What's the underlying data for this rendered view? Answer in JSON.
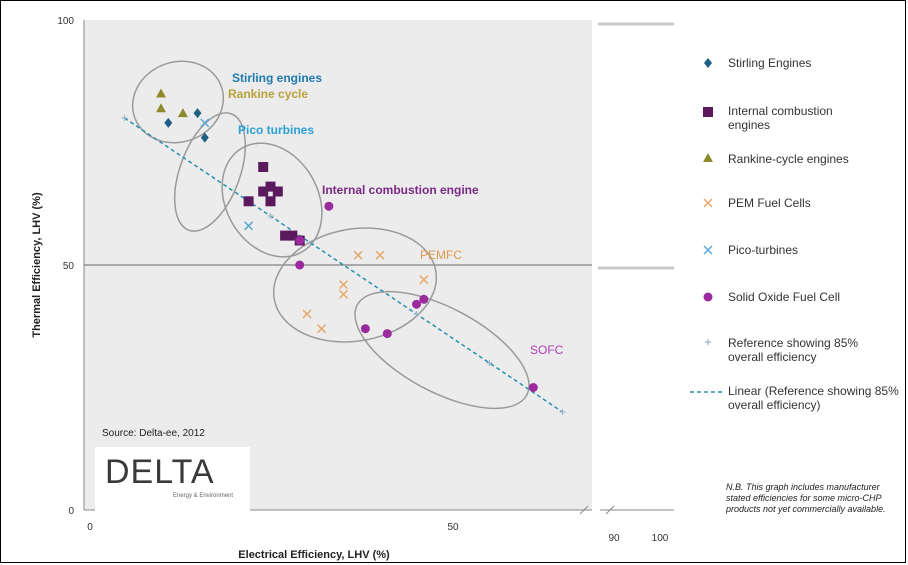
{
  "chart_data": {
    "type": "scatter",
    "xlabel": "Electrical Efficiency, LHV (%)",
    "ylabel": "Thermal Efficiency, LHV (%)",
    "xlim": [
      0,
      100
    ],
    "ylim": [
      0,
      100
    ],
    "x_ticks_main": [
      "0",
      "50"
    ],
    "x_ticks_right": [
      "90",
      "100"
    ],
    "y_ticks": [
      "0",
      "50",
      "100"
    ],
    "axis_break": true,
    "grid_y": [
      50
    ],
    "legend_position": "right",
    "series": [
      {
        "name": "Stirling Engines",
        "marker": "diamond",
        "color": "#1f5f86",
        "points": [
          [
            11,
            79
          ],
          [
            15,
            81
          ],
          [
            16,
            76
          ]
        ]
      },
      {
        "name": "Internal combustion engines",
        "marker": "square",
        "color": "#5b1a5e",
        "points": [
          [
            22,
            63
          ],
          [
            24,
            70
          ],
          [
            24,
            65
          ],
          [
            25,
            66
          ],
          [
            25,
            63
          ],
          [
            26,
            65
          ],
          [
            27,
            56
          ],
          [
            28,
            56
          ],
          [
            29,
            55
          ]
        ]
      },
      {
        "name": "Rankine-cycle engines",
        "marker": "triangle",
        "color": "#8c8a2a",
        "points": [
          [
            10,
            85
          ],
          [
            10,
            82
          ],
          [
            13,
            81
          ]
        ]
      },
      {
        "name": "PEM Fuel Cells",
        "marker": "x",
        "color": "#e8a86a",
        "points": [
          [
            30,
            40
          ],
          [
            32,
            37
          ],
          [
            35,
            44
          ],
          [
            35,
            46
          ],
          [
            37,
            52
          ],
          [
            40,
            52
          ],
          [
            46,
            47
          ]
        ]
      },
      {
        "name": "Pico-turbines",
        "marker": "x",
        "color": "#5aa9d6",
        "points": [
          [
            16,
            79
          ],
          [
            22,
            58
          ]
        ]
      },
      {
        "name": "Solid Oxide Fuel Cell",
        "marker": "circle",
        "color": "#9a2a9e",
        "points": [
          [
            29,
            55
          ],
          [
            33,
            62
          ],
          [
            29,
            50
          ],
          [
            38,
            37
          ],
          [
            41,
            36
          ],
          [
            45,
            42
          ],
          [
            46,
            43
          ],
          [
            61,
            25
          ]
        ]
      },
      {
        "name": "Reference showing 85% overall efficiency",
        "marker": "plus",
        "color": "#9fb8c8",
        "points": [
          [
            5,
            80
          ],
          [
            25,
            60
          ],
          [
            45,
            40
          ],
          [
            55,
            30
          ],
          [
            65,
            20
          ]
        ]
      },
      {
        "name": "Linear (Reference showing 85% overall efficiency)",
        "marker": "dashed-line",
        "color": "#2a8fb0",
        "points": [
          [
            5,
            80
          ],
          [
            65,
            20
          ]
        ]
      }
    ],
    "regions": [
      {
        "label": "Stirling engines",
        "color": "#1f7ab0",
        "bold": true
      },
      {
        "label": "Rankine cycle",
        "color": "#b9a23a",
        "bold": true
      },
      {
        "label": "Pico turbines",
        "color": "#2aa0d4",
        "bold": true
      },
      {
        "label": "Internal combustion engine",
        "color": "#7a2a84",
        "bold": true
      },
      {
        "label": "PEMFC",
        "color": "#e39a4e",
        "bold": false
      },
      {
        "label": "SOFC",
        "color": "#b23cb4",
        "bold": false
      }
    ]
  },
  "legend": [
    {
      "label": "Stirling Engines"
    },
    {
      "label": "Internal combustion engines"
    },
    {
      "label": "Rankine-cycle engines"
    },
    {
      "label": "PEM Fuel Cells"
    },
    {
      "label": "Pico-turbines"
    },
    {
      "label": "Solid Oxide Fuel Cell"
    },
    {
      "label": "Reference showing 85% overall efficiency"
    },
    {
      "label": "Linear (Reference showing 85% overall efficiency)"
    }
  ],
  "source": "Source: Delta-ee, 2012",
  "logo": {
    "word": "DELTA",
    "sub": "Energy & Environment"
  },
  "note": "N.B. This graph includes manufacturer stated efficiencies for some micro-CHP products not yet commercially available."
}
